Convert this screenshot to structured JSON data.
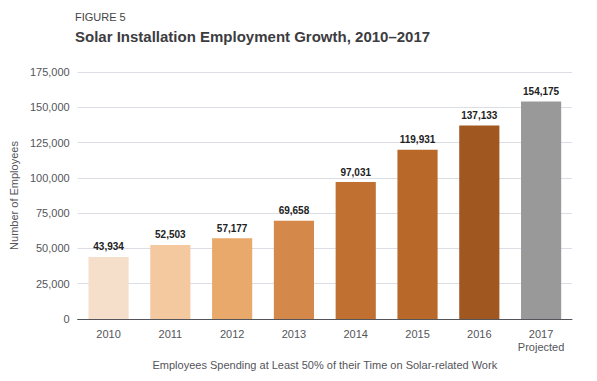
{
  "chart_data": {
    "type": "bar",
    "title": "Solar Installation Employment Growth, 2010–2017",
    "annotations": [
      "FIGURE 5"
    ],
    "xlabel": "Employees Spending at Least 50% of their Time on Solar-related Work",
    "ylabel": "Number of Employees",
    "categories": [
      "2010",
      "2011",
      "2012",
      "2013",
      "2014",
      "2015",
      "2016",
      "2017\nProjected"
    ],
    "values": [
      43934,
      52503,
      57177,
      69658,
      97031,
      119931,
      137133,
      154175
    ],
    "value_labels": [
      "43,934",
      "52,503",
      "57,177",
      "69,658",
      "97,031",
      "119,931",
      "137,133",
      "154,175"
    ],
    "colors": [
      "#f5dfca",
      "#f5c9a0",
      "#e8a96a",
      "#d4884a",
      "#c07030",
      "#b86828",
      "#a05820",
      "#999999"
    ],
    "data_labels": true,
    "ylim": [
      0,
      175000
    ],
    "yticks": [
      0,
      {
        "value": 25000,
        "label": "25,000"
      },
      {
        "value": 50000,
        "label": "50,000"
      },
      {
        "value": 75000,
        "label": "75,000"
      },
      {
        "value": 100000,
        "label": "100,000"
      },
      {
        "value": 125000,
        "label": "125,000"
      },
      {
        "value": 150000,
        "label": "150,000"
      },
      {
        "value": 175000,
        "label": "175,000"
      }
    ],
    "grid": true
  }
}
